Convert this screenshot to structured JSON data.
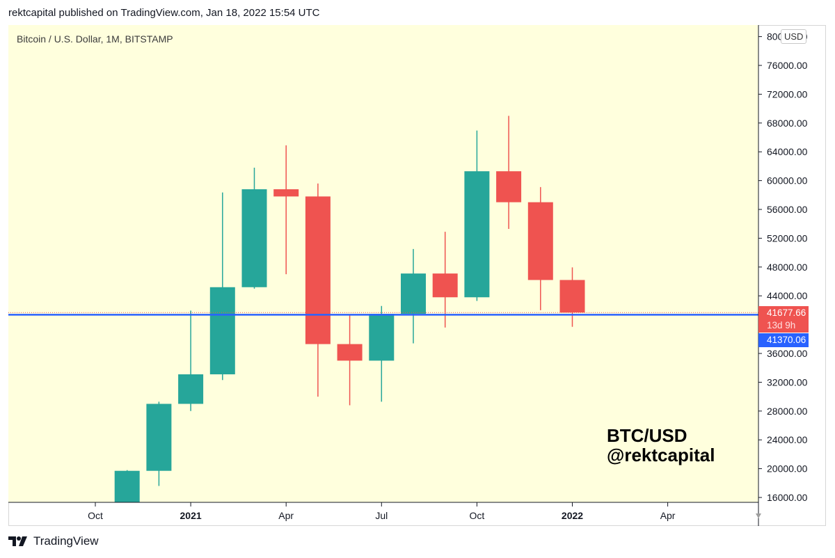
{
  "header": {
    "published": "rektcapital published on TradingView.com, Jan 18, 2022 15:54 UTC"
  },
  "legend": {
    "symbol": "Bitcoin / U.S. Dollar, 1M, BITSTAMP"
  },
  "currency": "USD",
  "watermark": {
    "line1": "BTC/USD",
    "line2": "@rektcapital"
  },
  "price_tags": {
    "close": "41677.66",
    "countdown": "13d 9h",
    "hline": "41370.06"
  },
  "footer": {
    "brand": "TradingView"
  },
  "colors": {
    "up": "#26a69a",
    "down": "#ef5350",
    "plot_bg": "#ffffdd",
    "hline": "#2962ff"
  },
  "chart_data": {
    "type": "candlestick",
    "title": "Bitcoin / U.S. Dollar, 1M, BITSTAMP",
    "y_axis_ticks": [
      "16000.00",
      "20000.00",
      "24000.00",
      "28000.00",
      "32000.00",
      "36000.00",
      "40000.00",
      "44000.00",
      "48000.00",
      "52000.00",
      "56000.00",
      "60000.00",
      "64000.00",
      "68000.00",
      "72000.00",
      "76000.00",
      "80000.00"
    ],
    "x_axis_labels": [
      {
        "label": "Oct",
        "index": 0,
        "bold": false
      },
      {
        "label": "2021",
        "index": 3,
        "bold": true
      },
      {
        "label": "Apr",
        "index": 6,
        "bold": false
      },
      {
        "label": "Jul",
        "index": 9,
        "bold": false
      },
      {
        "label": "Oct",
        "index": 12,
        "bold": false
      },
      {
        "label": "2022",
        "index": 15,
        "bold": true
      },
      {
        "label": "Apr",
        "index": 18,
        "bold": false
      }
    ],
    "ylim": [
      16000,
      80000
    ],
    "candles": [
      {
        "date": "2020-11",
        "open": 13800,
        "high": 19800,
        "low": 13250,
        "close": 19700
      },
      {
        "date": "2020-12",
        "open": 19700,
        "high": 29300,
        "low": 17600,
        "close": 29000
      },
      {
        "date": "2021-01",
        "open": 29000,
        "high": 41950,
        "low": 28000,
        "close": 33100
      },
      {
        "date": "2021-02",
        "open": 33100,
        "high": 58350,
        "low": 32300,
        "close": 45200
      },
      {
        "date": "2021-03",
        "open": 45200,
        "high": 61800,
        "low": 45000,
        "close": 58800
      },
      {
        "date": "2021-04",
        "open": 58800,
        "high": 64900,
        "low": 47000,
        "close": 57800
      },
      {
        "date": "2021-05",
        "open": 57800,
        "high": 59600,
        "low": 30000,
        "close": 37300
      },
      {
        "date": "2021-06",
        "open": 37300,
        "high": 41300,
        "low": 28800,
        "close": 35000
      },
      {
        "date": "2021-07",
        "open": 35000,
        "high": 42600,
        "low": 29300,
        "close": 41500
      },
      {
        "date": "2021-08",
        "open": 41500,
        "high": 50500,
        "low": 37400,
        "close": 47100
      },
      {
        "date": "2021-09",
        "open": 47100,
        "high": 52900,
        "low": 39600,
        "close": 43800
      },
      {
        "date": "2021-10",
        "open": 43800,
        "high": 66950,
        "low": 43300,
        "close": 61300
      },
      {
        "date": "2021-11",
        "open": 61300,
        "high": 69000,
        "low": 53300,
        "close": 57000
      },
      {
        "date": "2021-12",
        "open": 57000,
        "high": 59100,
        "low": 42000,
        "close": 46200
      },
      {
        "date": "2022-01",
        "open": 46200,
        "high": 47950,
        "low": 39700,
        "close": 41677.66
      }
    ],
    "horizontal_line": 41370.06,
    "last_close": 41677.66
  }
}
